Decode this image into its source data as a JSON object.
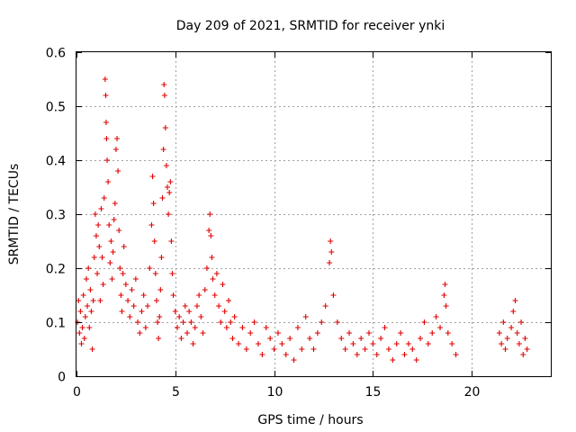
{
  "chart_data": {
    "type": "scatter",
    "title": "Day 209 of 2021, SRMTID for receiver ynki",
    "xlabel": "GPS time / hours",
    "ylabel": "SRMTID / TECUs",
    "xlim": [
      0,
      24
    ],
    "ylim": [
      0,
      0.6
    ],
    "x_ticks": [
      0,
      5,
      10,
      15,
      20
    ],
    "y_ticks": [
      0,
      0.1,
      0.2,
      0.3,
      0.4,
      0.5,
      0.6
    ],
    "x_tick_labels": [
      "0",
      "5",
      "10",
      "15",
      "20"
    ],
    "y_tick_labels": [
      "0",
      "0.1",
      "0.2",
      "0.3",
      "0.4",
      "0.5",
      "0.6"
    ],
    "grid": true,
    "marker": "+",
    "color": "#e00000",
    "series": [
      {
        "name": "SRMTID",
        "points": [
          [
            0.05,
            0.1
          ],
          [
            0.1,
            0.14
          ],
          [
            0.15,
            0.08
          ],
          [
            0.2,
            0.12
          ],
          [
            0.25,
            0.06
          ],
          [
            0.3,
            0.09
          ],
          [
            0.35,
            0.15
          ],
          [
            0.4,
            0.07
          ],
          [
            0.45,
            0.11
          ],
          [
            0.5,
            0.18
          ],
          [
            0.55,
            0.13
          ],
          [
            0.6,
            0.2
          ],
          [
            0.65,
            0.09
          ],
          [
            0.7,
            0.16
          ],
          [
            0.75,
            0.12
          ],
          [
            0.8,
            0.05
          ],
          [
            0.85,
            0.14
          ],
          [
            0.9,
            0.22
          ],
          [
            0.95,
            0.3
          ],
          [
            1.0,
            0.26
          ],
          [
            1.05,
            0.19
          ],
          [
            1.1,
            0.28
          ],
          [
            1.15,
            0.24
          ],
          [
            1.2,
            0.14
          ],
          [
            1.25,
            0.31
          ],
          [
            1.3,
            0.22
          ],
          [
            1.35,
            0.17
          ],
          [
            1.4,
            0.33
          ],
          [
            1.45,
            0.55
          ],
          [
            1.48,
            0.52
          ],
          [
            1.5,
            0.47
          ],
          [
            1.52,
            0.44
          ],
          [
            1.55,
            0.4
          ],
          [
            1.6,
            0.36
          ],
          [
            1.65,
            0.28
          ],
          [
            1.7,
            0.21
          ],
          [
            1.75,
            0.25
          ],
          [
            1.8,
            0.18
          ],
          [
            1.85,
            0.23
          ],
          [
            1.9,
            0.29
          ],
          [
            1.95,
            0.32
          ],
          [
            2.0,
            0.42
          ],
          [
            2.05,
            0.44
          ],
          [
            2.1,
            0.38
          ],
          [
            2.15,
            0.27
          ],
          [
            2.2,
            0.2
          ],
          [
            2.25,
            0.15
          ],
          [
            2.3,
            0.12
          ],
          [
            2.35,
            0.19
          ],
          [
            2.4,
            0.24
          ],
          [
            2.5,
            0.17
          ],
          [
            2.6,
            0.14
          ],
          [
            2.7,
            0.11
          ],
          [
            2.8,
            0.16
          ],
          [
            2.9,
            0.13
          ],
          [
            3.0,
            0.18
          ],
          [
            3.1,
            0.1
          ],
          [
            3.2,
            0.08
          ],
          [
            3.3,
            0.12
          ],
          [
            3.4,
            0.15
          ],
          [
            3.5,
            0.09
          ],
          [
            3.6,
            0.13
          ],
          [
            3.7,
            0.2
          ],
          [
            3.8,
            0.28
          ],
          [
            3.85,
            0.37
          ],
          [
            3.9,
            0.32
          ],
          [
            3.95,
            0.25
          ],
          [
            4.0,
            0.19
          ],
          [
            4.05,
            0.14
          ],
          [
            4.1,
            0.1
          ],
          [
            4.15,
            0.07
          ],
          [
            4.2,
            0.11
          ],
          [
            4.25,
            0.16
          ],
          [
            4.3,
            0.22
          ],
          [
            4.35,
            0.33
          ],
          [
            4.4,
            0.42
          ],
          [
            4.43,
            0.54
          ],
          [
            4.46,
            0.52
          ],
          [
            4.5,
            0.46
          ],
          [
            4.55,
            0.39
          ],
          [
            4.6,
            0.35
          ],
          [
            4.65,
            0.3
          ],
          [
            4.7,
            0.34
          ],
          [
            4.75,
            0.36
          ],
          [
            4.8,
            0.25
          ],
          [
            4.85,
            0.19
          ],
          [
            4.9,
            0.15
          ],
          [
            5.0,
            0.12
          ],
          [
            5.1,
            0.09
          ],
          [
            5.2,
            0.11
          ],
          [
            5.3,
            0.07
          ],
          [
            5.4,
            0.1
          ],
          [
            5.5,
            0.13
          ],
          [
            5.6,
            0.08
          ],
          [
            5.7,
            0.12
          ],
          [
            5.8,
            0.1
          ],
          [
            5.9,
            0.06
          ],
          [
            6.0,
            0.09
          ],
          [
            6.1,
            0.13
          ],
          [
            6.2,
            0.15
          ],
          [
            6.3,
            0.11
          ],
          [
            6.4,
            0.08
          ],
          [
            6.5,
            0.16
          ],
          [
            6.6,
            0.2
          ],
          [
            6.7,
            0.27
          ],
          [
            6.75,
            0.3
          ],
          [
            6.8,
            0.26
          ],
          [
            6.85,
            0.22
          ],
          [
            6.9,
            0.18
          ],
          [
            7.0,
            0.15
          ],
          [
            7.1,
            0.19
          ],
          [
            7.2,
            0.13
          ],
          [
            7.3,
            0.1
          ],
          [
            7.4,
            0.17
          ],
          [
            7.5,
            0.12
          ],
          [
            7.6,
            0.09
          ],
          [
            7.7,
            0.14
          ],
          [
            7.8,
            0.1
          ],
          [
            7.9,
            0.07
          ],
          [
            8.0,
            0.11
          ],
          [
            8.2,
            0.06
          ],
          [
            8.4,
            0.09
          ],
          [
            8.6,
            0.05
          ],
          [
            8.8,
            0.08
          ],
          [
            9.0,
            0.1
          ],
          [
            9.2,
            0.06
          ],
          [
            9.4,
            0.04
          ],
          [
            9.6,
            0.09
          ],
          [
            9.8,
            0.07
          ],
          [
            10.0,
            0.05
          ],
          [
            10.2,
            0.08
          ],
          [
            10.4,
            0.06
          ],
          [
            10.6,
            0.04
          ],
          [
            10.8,
            0.07
          ],
          [
            11.0,
            0.03
          ],
          [
            11.2,
            0.09
          ],
          [
            11.4,
            0.05
          ],
          [
            11.6,
            0.11
          ],
          [
            11.8,
            0.07
          ],
          [
            12.0,
            0.05
          ],
          [
            12.2,
            0.08
          ],
          [
            12.4,
            0.1
          ],
          [
            12.6,
            0.13
          ],
          [
            12.8,
            0.21
          ],
          [
            12.85,
            0.25
          ],
          [
            12.9,
            0.23
          ],
          [
            13.0,
            0.15
          ],
          [
            13.2,
            0.1
          ],
          [
            13.4,
            0.07
          ],
          [
            13.6,
            0.05
          ],
          [
            13.8,
            0.08
          ],
          [
            14.0,
            0.06
          ],
          [
            14.2,
            0.04
          ],
          [
            14.4,
            0.07
          ],
          [
            14.6,
            0.05
          ],
          [
            14.8,
            0.08
          ],
          [
            15.0,
            0.06
          ],
          [
            15.2,
            0.04
          ],
          [
            15.4,
            0.07
          ],
          [
            15.6,
            0.09
          ],
          [
            15.8,
            0.05
          ],
          [
            16.0,
            0.03
          ],
          [
            16.2,
            0.06
          ],
          [
            16.4,
            0.08
          ],
          [
            16.6,
            0.04
          ],
          [
            16.8,
            0.06
          ],
          [
            17.0,
            0.05
          ],
          [
            17.2,
            0.03
          ],
          [
            17.4,
            0.07
          ],
          [
            17.6,
            0.1
          ],
          [
            17.8,
            0.06
          ],
          [
            18.0,
            0.08
          ],
          [
            18.2,
            0.11
          ],
          [
            18.4,
            0.09
          ],
          [
            18.6,
            0.15
          ],
          [
            18.65,
            0.17
          ],
          [
            18.7,
            0.13
          ],
          [
            18.8,
            0.08
          ],
          [
            19.0,
            0.06
          ],
          [
            19.2,
            0.04
          ],
          [
            21.4,
            0.08
          ],
          [
            21.5,
            0.06
          ],
          [
            21.6,
            0.1
          ],
          [
            21.7,
            0.05
          ],
          [
            21.8,
            0.07
          ],
          [
            22.0,
            0.09
          ],
          [
            22.1,
            0.12
          ],
          [
            22.2,
            0.14
          ],
          [
            22.3,
            0.08
          ],
          [
            22.4,
            0.06
          ],
          [
            22.5,
            0.1
          ],
          [
            22.6,
            0.04
          ],
          [
            22.7,
            0.07
          ],
          [
            22.8,
            0.05
          ]
        ]
      }
    ]
  }
}
